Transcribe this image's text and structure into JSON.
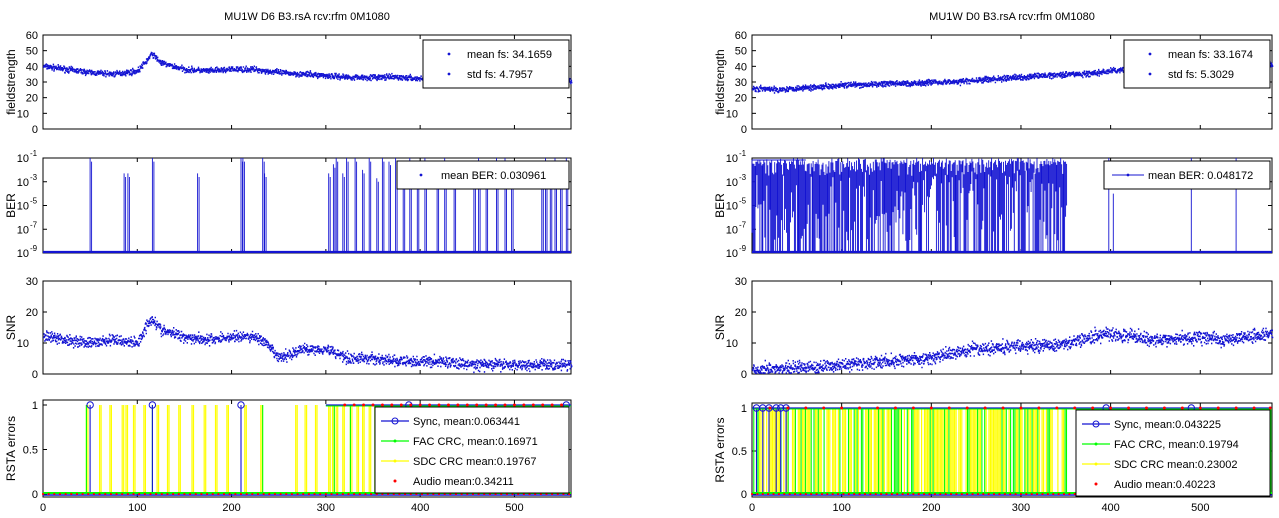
{
  "figure": {
    "background": "#ffffff"
  },
  "chart_data": [
    {
      "title": "MU1W D6 B3.rsA rcv:rfm 0M1080",
      "type": "scatter",
      "xlim": [
        0,
        560
      ],
      "x_ticks": [
        0,
        100,
        200,
        300,
        400,
        500
      ],
      "panels": [
        {
          "ylabel": "fieldstrength",
          "type": "scatter",
          "ylim": [
            0,
            60
          ],
          "yticks": [
            "0",
            "10",
            "20",
            "30",
            "40",
            "50",
            "60"
          ],
          "legend": [
            "mean fs: 34.1659",
            "std fs: 4.7957"
          ],
          "legend_placement": "top-right",
          "series": [
            {
              "values_x": [
                0,
                25,
                50,
                75,
                100,
                110,
                115,
                125,
                150,
                175,
                200,
                225,
                235,
                250,
                275,
                300,
                325,
                350,
                375,
                400,
                425,
                450,
                475,
                500,
                525,
                550,
                560
              ],
              "values_y": [
                40,
                38,
                36,
                35,
                37,
                44,
                48,
                42,
                38,
                37,
                38,
                38,
                37,
                36,
                35,
                34,
                33,
                33,
                33,
                32,
                32,
                32,
                32,
                33,
                33,
                34,
                29
              ]
            }
          ]
        },
        {
          "ylabel": "BER",
          "type": "line",
          "yscale": "log",
          "ylim": [
            1e-09,
            0.1
          ],
          "yticks": [
            "10-9",
            "10-7",
            "10-5",
            "10-3",
            "10-1"
          ],
          "legend": [
            "mean BER: 0.030961"
          ],
          "legend_placement": "top-right",
          "baseline": 1e-09,
          "spikes": [
            [
              50,
              0.1
            ],
            [
              86,
              0.005
            ],
            [
              90,
              0.005
            ],
            [
              116,
              0.1
            ],
            [
              164,
              0.005
            ],
            [
              210,
              0.1
            ],
            [
              212,
              0.1
            ],
            [
              233,
              0.1
            ],
            [
              235,
              0.005
            ],
            [
              303,
              0.005
            ],
            [
              308,
              0.03
            ],
            [
              311,
              0.1
            ],
            [
              318,
              0.005
            ],
            [
              322,
              0.1
            ],
            [
              331,
              0.1
            ],
            [
              339,
              0.01
            ],
            [
              346,
              0.1
            ],
            [
              354,
              0.002
            ],
            [
              360,
              0.1
            ],
            [
              367,
              0.05
            ],
            [
              374,
              0.1
            ],
            [
              382,
              0.001
            ],
            [
              389,
              0.1
            ],
            [
              397,
              0.01
            ],
            [
              405,
              0.1
            ],
            [
              418,
              0.002
            ],
            [
              426,
              0.1
            ],
            [
              436,
              0.05
            ],
            [
              457,
              0.002
            ],
            [
              462,
              0.1
            ],
            [
              470,
              0.05
            ],
            [
              481,
              0.1
            ],
            [
              490,
              0.1
            ],
            [
              497,
              0.002
            ],
            [
              529,
              0.01
            ],
            [
              533,
              0.1
            ],
            [
              538,
              0.05
            ],
            [
              543,
              0.1
            ],
            [
              549,
              0.01
            ],
            [
              555,
              0.1
            ]
          ]
        },
        {
          "ylabel": "SNR",
          "type": "scatter",
          "ylim": [
            0,
            30
          ],
          "yticks": [
            "0",
            "10",
            "20",
            "30"
          ],
          "series": [
            {
              "values_x": [
                0,
                25,
                50,
                75,
                100,
                110,
                115,
                125,
                150,
                175,
                200,
                225,
                235,
                250,
                275,
                300,
                325,
                350,
                375,
                400,
                425,
                450,
                475,
                500,
                525,
                550,
                560
              ],
              "values_y": [
                12,
                11,
                10,
                11,
                10,
                16,
                18,
                14,
                12,
                11,
                12,
                12,
                10,
                5,
                8,
                8,
                5,
                5,
                4,
                4,
                4,
                3,
                3,
                3,
                3,
                3,
                3
              ]
            }
          ]
        },
        {
          "ylabel": "RSTA errors",
          "type": "line",
          "ylim": [
            0,
            1
          ],
          "yticks": [
            "0",
            "0.5",
            "1"
          ],
          "legend": [
            "Sync, mean:0.063441",
            "FAC CRC, mean:0.16971",
            "SDC CRC mean:0.19767",
            "Audio mean:0.34211"
          ],
          "legend_placement": "bottom-right",
          "colors": {
            "sync": "#1414d2",
            "fac": "#00ff00",
            "sdc": "#ffff00",
            "audio": "#ff0000"
          },
          "sdc_events": [
            46,
            60,
            71,
            84,
            88,
            96,
            107,
            121,
            132,
            144,
            158,
            171,
            183,
            195,
            214,
            231,
            268,
            278,
            289,
            303,
            307,
            311,
            318,
            326,
            333,
            339,
            346,
            352,
            358,
            364,
            370,
            376,
            382,
            389,
            395,
            401,
            408,
            414,
            420,
            427,
            433,
            439,
            446,
            452,
            459,
            465,
            471,
            478,
            484,
            490,
            497,
            503,
            509,
            516,
            522,
            528,
            535,
            541,
            547,
            553
          ],
          "fac_events": [
            46,
            116,
            233,
            309,
            326,
            352,
            382,
            418,
            436,
            462,
            490,
            533,
            555
          ],
          "sync_events": [
            50,
            116,
            210,
            388,
            555
          ],
          "audio_top_x": [
            320,
            330,
            340,
            350,
            360,
            370,
            380,
            390,
            400,
            410,
            420,
            430,
            440,
            450,
            460,
            470,
            480,
            490,
            500,
            510,
            520,
            530,
            540,
            550
          ]
        }
      ]
    },
    {
      "title": "MU1W D0 B3.rsA rcv:rfm 0M1080",
      "type": "scatter",
      "xlim": [
        0,
        580
      ],
      "x_ticks": [
        0,
        100,
        200,
        300,
        400,
        500
      ],
      "panels": [
        {
          "ylabel": "fieldstrength",
          "type": "scatter",
          "ylim": [
            0,
            60
          ],
          "yticks": [
            "0",
            "10",
            "20",
            "30",
            "40",
            "50",
            "60"
          ],
          "legend": [
            "mean fs: 33.1674",
            "std fs: 5.3029"
          ],
          "legend_placement": "top-right",
          "series": [
            {
              "values_x": [
                0,
                25,
                50,
                75,
                100,
                125,
                150,
                175,
                200,
                225,
                250,
                275,
                300,
                325,
                350,
                375,
                400,
                425,
                450,
                475,
                500,
                525,
                550,
                580
              ],
              "values_y": [
                26,
                25,
                26,
                27,
                28,
                28,
                29,
                29,
                30,
                30,
                31,
                32,
                33,
                34,
                35,
                35,
                37,
                38,
                40,
                40,
                40,
                40,
                40,
                41
              ]
            }
          ]
        },
        {
          "ylabel": "BER",
          "type": "line",
          "yscale": "log",
          "ylim": [
            1e-09,
            0.1
          ],
          "yticks": [
            "10-9",
            "10-7",
            "10-5",
            "10-3",
            "10-1"
          ],
          "legend": [
            "mean BER: 0.048172"
          ],
          "legend_placement": "top-right",
          "baseline": 1e-09,
          "dense_range": [
            0,
            352
          ],
          "isolated_spikes": [
            [
              398,
              0.1
            ],
            [
              403,
              0.0001
            ],
            [
              490,
              0.1
            ],
            [
              540,
              0.1
            ]
          ]
        },
        {
          "ylabel": "SNR",
          "type": "scatter",
          "ylim": [
            0,
            30
          ],
          "yticks": [
            "0",
            "10",
            "20",
            "30"
          ],
          "series": [
            {
              "values_x": [
                0,
                25,
                50,
                75,
                100,
                125,
                150,
                175,
                200,
                225,
                250,
                275,
                300,
                325,
                350,
                375,
                400,
                425,
                450,
                475,
                500,
                525,
                550,
                580
              ],
              "values_y": [
                1.5,
                1.5,
                2,
                2.5,
                3,
                3.5,
                4,
                4.5,
                5,
                7,
                8,
                8.5,
                9,
                9,
                10,
                12,
                13,
                12,
                11,
                11,
                12,
                11,
                12,
                13
              ]
            }
          ]
        },
        {
          "ylabel": "RSTA errors",
          "type": "line",
          "ylim": [
            0,
            1
          ],
          "yticks": [
            "0",
            "0.5",
            "1"
          ],
          "legend": [
            "Sync, mean:0.043225",
            "FAC CRC, mean:0.19794",
            "SDC CRC mean:0.23002",
            "Audio mean:0.40223"
          ],
          "legend_placement": "bottom-right",
          "colors": {
            "sync": "#1414d2",
            "fac": "#00ff00",
            "sdc": "#ffff00",
            "audio": "#ff0000"
          },
          "dense_range": [
            0,
            352
          ],
          "late_events": [
            397,
            413,
            426,
            436,
            452,
            470,
            488,
            506,
            519,
            531,
            546,
            563,
            577
          ],
          "sync_events": [
            5,
            12,
            19,
            27,
            32,
            38,
            395,
            490
          ],
          "audio_top_x": [
            20,
            40,
            60,
            80,
            100,
            120,
            140,
            160,
            180,
            200,
            220,
            240,
            260,
            280,
            300,
            320,
            340,
            360,
            380,
            400,
            420,
            440,
            460,
            480,
            500,
            520,
            540,
            560,
            578
          ]
        }
      ]
    }
  ]
}
